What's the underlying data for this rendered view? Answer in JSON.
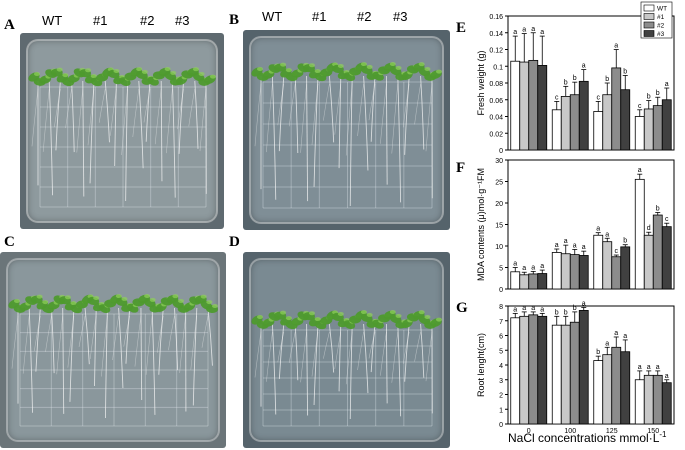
{
  "panels": {
    "A": "A",
    "B": "B",
    "C": "C",
    "D": "D",
    "E": "E",
    "F": "F",
    "G": "G"
  },
  "column_labels_a": [
    "WT",
    "#1",
    "#2",
    "#3"
  ],
  "column_labels_b": [
    "WT",
    "#1",
    "#2",
    "#3"
  ],
  "colors": {
    "wt": "#ffffff",
    "line1": "#c8c8c8",
    "line2": "#8c8c8c",
    "line3": "#404040",
    "bar_edge": "#000000",
    "plant": "#4e9a2e",
    "dish_a": "#8e9a9e",
    "dish_b": "#7f8e96",
    "dish_c": "#8a979c",
    "dish_d": "#7a8a92"
  },
  "x_axis_label": "NaCl concentrations mmol·L",
  "x_axis_label_sup": "-1",
  "chart_data": [
    {
      "panel": "E",
      "type": "bar",
      "ylabel": "Fresh weight (g)",
      "ylim": [
        0,
        0.16
      ],
      "yticks": [
        "0",
        "0.02",
        "0.04",
        "0.06",
        "0.08",
        "0.1",
        "0.12",
        "0.14",
        "0.16"
      ],
      "categories": [
        "0",
        "100",
        "125",
        "150"
      ],
      "show_xticks": false,
      "legend": [
        "WT",
        "#1",
        "#2",
        "#3"
      ],
      "legend_position": "top-right",
      "series": [
        {
          "name": "WT",
          "values": [
            0.106,
            0.048,
            0.046,
            0.04
          ],
          "err": [
            0.03,
            0.01,
            0.012,
            0.008
          ],
          "letters": [
            "a",
            "c",
            "c",
            "c"
          ]
        },
        {
          "name": "#1",
          "values": [
            0.105,
            0.064,
            0.066,
            0.049
          ],
          "err": [
            0.034,
            0.012,
            0.014,
            0.01
          ],
          "letters": [
            "a",
            "b",
            "b",
            "b"
          ]
        },
        {
          "name": "#2",
          "values": [
            0.107,
            0.066,
            0.098,
            0.053
          ],
          "err": [
            0.033,
            0.015,
            0.022,
            0.01
          ],
          "letters": [
            "a",
            "b",
            "a",
            "b"
          ]
        },
        {
          "name": "#3",
          "values": [
            0.101,
            0.082,
            0.072,
            0.06
          ],
          "err": [
            0.035,
            0.014,
            0.017,
            0.014
          ],
          "letters": [
            "a",
            "a",
            "b",
            "a"
          ]
        }
      ]
    },
    {
      "panel": "F",
      "type": "bar",
      "ylabel": "MDA contents (μ)mol·g⁻¹FM",
      "ylim": [
        0,
        30
      ],
      "yticks": [
        "0",
        "5",
        "10",
        "15",
        "20",
        "25",
        "30"
      ],
      "categories": [
        "0",
        "100",
        "125",
        "150"
      ],
      "show_xticks": false,
      "series": [
        {
          "name": "WT",
          "values": [
            4.0,
            8.5,
            12.5,
            25.5
          ],
          "err": [
            1.0,
            0.8,
            0.6,
            1.2
          ],
          "letters": [
            "a",
            "a",
            "a",
            "a"
          ]
        },
        {
          "name": "#1",
          "values": [
            3.3,
            8.2,
            11.0,
            12.5
          ],
          "err": [
            0.6,
            2.0,
            0.8,
            0.7
          ],
          "letters": [
            "a",
            "a",
            "a",
            "d"
          ]
        },
        {
          "name": "#2",
          "values": [
            3.5,
            8.0,
            7.5,
            17.2
          ],
          "err": [
            0.6,
            1.2,
            0.4,
            0.6
          ],
          "letters": [
            "a",
            "a",
            "c",
            "b"
          ]
        },
        {
          "name": "#3",
          "values": [
            3.6,
            7.8,
            9.8,
            14.5
          ],
          "err": [
            0.8,
            1.0,
            0.5,
            0.8
          ],
          "letters": [
            "a",
            "a",
            "b",
            "c"
          ]
        }
      ]
    },
    {
      "panel": "G",
      "type": "bar",
      "ylabel": "Root lenght(cm)",
      "ylim": [
        0,
        8
      ],
      "yticks": [
        "0",
        "1",
        "2",
        "3",
        "4",
        "5",
        "6",
        "7",
        "8"
      ],
      "categories": [
        "0",
        "100",
        "125",
        "150"
      ],
      "show_xticks": true,
      "series": [
        {
          "name": "WT",
          "values": [
            7.2,
            6.7,
            4.3,
            3.0
          ],
          "err": [
            0.3,
            0.6,
            0.3,
            0.6
          ],
          "letters": [
            "a",
            "b",
            "b",
            "a"
          ]
        },
        {
          "name": "#1",
          "values": [
            7.3,
            6.7,
            4.7,
            3.3
          ],
          "err": [
            0.3,
            0.6,
            0.5,
            0.3
          ],
          "letters": [
            "a",
            "b",
            "a",
            "a"
          ]
        },
        {
          "name": "#2",
          "values": [
            7.4,
            6.9,
            5.2,
            3.3
          ],
          "err": [
            0.2,
            0.7,
            0.7,
            0.3
          ],
          "letters": [
            "a",
            "b",
            "a",
            "a"
          ]
        },
        {
          "name": "#3",
          "values": [
            7.3,
            7.7,
            4.9,
            2.8
          ],
          "err": [
            0.2,
            0.2,
            0.8,
            0.2
          ],
          "letters": [
            "a",
            "a",
            "a",
            "a"
          ]
        }
      ]
    }
  ]
}
